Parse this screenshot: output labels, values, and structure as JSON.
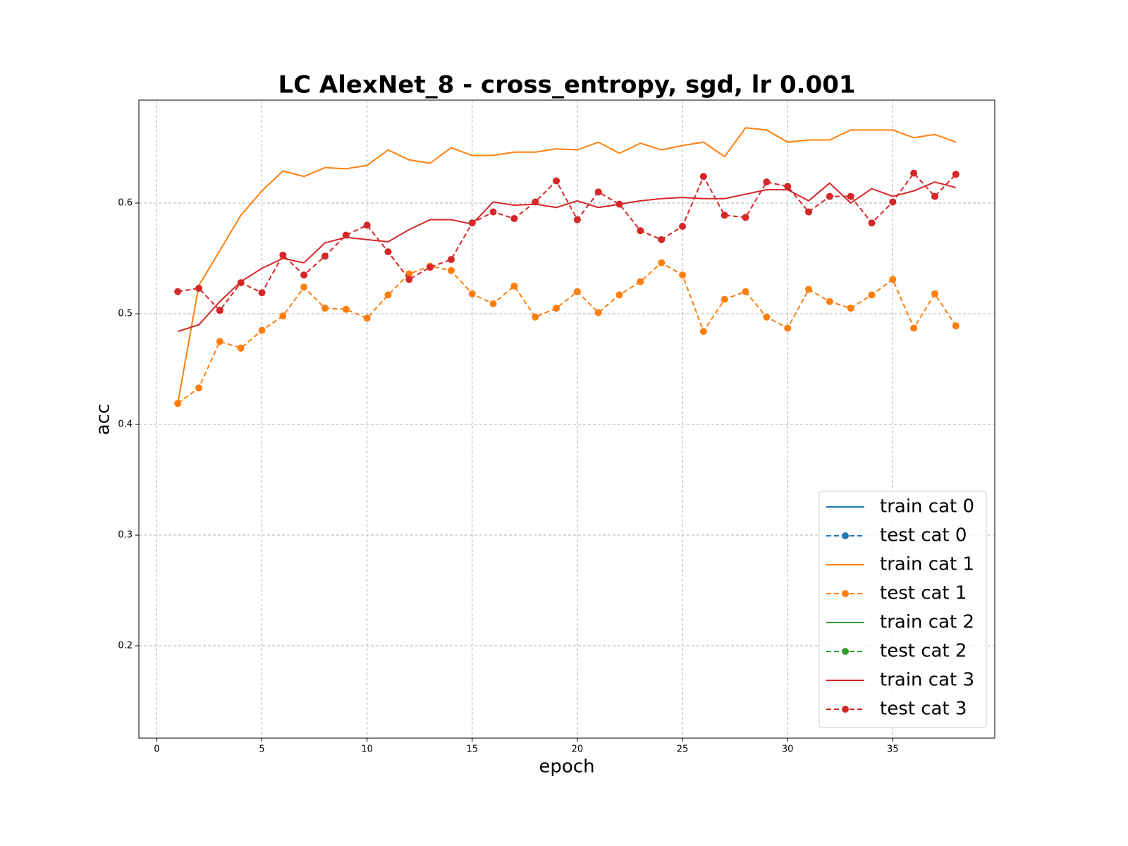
{
  "chart_data": {
    "type": "line",
    "title": "LC AlexNet_8 - cross_entropy, sgd, lr 0.001",
    "x_label": "epoch",
    "y_label": "acc",
    "x": [
      1,
      2,
      3,
      4,
      5,
      6,
      7,
      8,
      9,
      10,
      11,
      12,
      13,
      14,
      15,
      16,
      17,
      18,
      19,
      20,
      21,
      22,
      23,
      24,
      25,
      26,
      27,
      28,
      29,
      30,
      31,
      32,
      33,
      34,
      35,
      36,
      37,
      38
    ],
    "series": [
      {
        "name": "train cat 0",
        "color": "#1f77b4",
        "linestyle": "solid",
        "marker": "none",
        "values": [
          null,
          null,
          null,
          null,
          null,
          null,
          null,
          null,
          null,
          null,
          null,
          null,
          null,
          null,
          null,
          null,
          null,
          null,
          null,
          null,
          null,
          null,
          null,
          null,
          null,
          null,
          null,
          null,
          null,
          null,
          null,
          null,
          null,
          null,
          null,
          null,
          null,
          null
        ]
      },
      {
        "name": "test cat 0",
        "color": "#1f77b4",
        "linestyle": "dashed",
        "marker": "o",
        "values": [
          null,
          null,
          null,
          null,
          null,
          null,
          null,
          null,
          null,
          null,
          null,
          null,
          null,
          null,
          null,
          null,
          null,
          null,
          null,
          null,
          null,
          null,
          null,
          null,
          null,
          null,
          null,
          null,
          null,
          null,
          null,
          null,
          null,
          null,
          null,
          null,
          null,
          null
        ]
      },
      {
        "name": "train cat 1",
        "color": "#ff7f0e",
        "linestyle": "solid",
        "marker": "none",
        "values": [
          0.419,
          0.5255,
          0.557,
          0.589,
          0.611,
          0.629,
          0.624,
          0.632,
          0.631,
          0.634,
          0.648,
          0.639,
          0.636,
          0.65,
          0.643,
          0.643,
          0.646,
          0.646,
          0.649,
          0.648,
          0.655,
          0.645,
          0.654,
          0.648,
          0.652,
          0.655,
          0.642,
          0.668,
          0.666,
          0.655,
          0.657,
          0.657,
          0.666,
          0.666,
          0.666,
          0.659,
          0.662,
          0.655
        ]
      },
      {
        "name": "test cat 1",
        "color": "#ff7f0e",
        "linestyle": "dashed",
        "marker": "o",
        "values": [
          0.419,
          0.433,
          0.475,
          0.469,
          0.485,
          0.498,
          0.524,
          0.505,
          0.504,
          0.496,
          0.517,
          0.536,
          0.543,
          0.539,
          0.518,
          0.509,
          0.525,
          0.497,
          0.505,
          0.52,
          0.501,
          0.517,
          0.529,
          0.546,
          0.535,
          0.484,
          0.513,
          0.52,
          0.497,
          0.487,
          0.522,
          0.511,
          0.505,
          0.517,
          0.531,
          0.487,
          0.518,
          0.489
        ]
      },
      {
        "name": "train cat 2",
        "color": "#2ca02c",
        "linestyle": "solid",
        "marker": "none",
        "values": [
          null,
          null,
          null,
          null,
          null,
          null,
          null,
          null,
          null,
          null,
          null,
          null,
          null,
          null,
          null,
          null,
          null,
          null,
          null,
          null,
          null,
          null,
          null,
          null,
          null,
          null,
          null,
          null,
          null,
          null,
          null,
          null,
          null,
          null,
          null,
          null,
          null,
          null
        ]
      },
      {
        "name": "test cat 2",
        "color": "#2ca02c",
        "linestyle": "dashed",
        "marker": "o",
        "values": [
          null,
          null,
          null,
          null,
          null,
          null,
          null,
          null,
          null,
          null,
          null,
          null,
          null,
          null,
          null,
          null,
          null,
          null,
          null,
          null,
          null,
          null,
          null,
          null,
          null,
          null,
          null,
          null,
          null,
          null,
          null,
          null,
          null,
          null,
          null,
          null,
          null,
          null
        ]
      },
      {
        "name": "train cat 3",
        "color": "#d62728",
        "linestyle": "solid",
        "marker": "none",
        "values": [
          0.484,
          0.49,
          0.511,
          0.529,
          0.541,
          0.55,
          0.546,
          0.564,
          0.569,
          0.567,
          0.565,
          0.576,
          0.585,
          0.585,
          0.581,
          0.601,
          0.598,
          0.599,
          0.596,
          0.602,
          0.596,
          0.599,
          0.602,
          0.604,
          0.605,
          0.604,
          0.604,
          0.608,
          0.612,
          0.612,
          0.602,
          0.618,
          0.6,
          0.613,
          0.606,
          0.611,
          0.619,
          0.614
        ]
      },
      {
        "name": "test cat 3",
        "color": "#d62728",
        "linestyle": "dashed",
        "marker": "o",
        "values": [
          0.52,
          0.523,
          0.503,
          0.528,
          0.519,
          0.553,
          0.535,
          0.552,
          0.571,
          0.58,
          0.556,
          0.531,
          0.542,
          0.549,
          0.582,
          0.592,
          0.586,
          0.601,
          0.62,
          0.585,
          0.61,
          0.599,
          0.575,
          0.567,
          0.579,
          0.624,
          0.589,
          0.587,
          0.619,
          0.615,
          0.592,
          0.606,
          0.606,
          0.582,
          0.601,
          0.627,
          0.606,
          0.626
        ]
      }
    ],
    "xlim": [
      -0.85,
      39.85
    ],
    "xticks": [
      0,
      5,
      10,
      15,
      20,
      25,
      30,
      35
    ],
    "ylim": [
      0.1166,
      0.693
    ],
    "yticks": [
      0.2,
      0.3,
      0.4,
      0.5,
      0.6
    ],
    "grid": true,
    "legend": "lower right"
  }
}
